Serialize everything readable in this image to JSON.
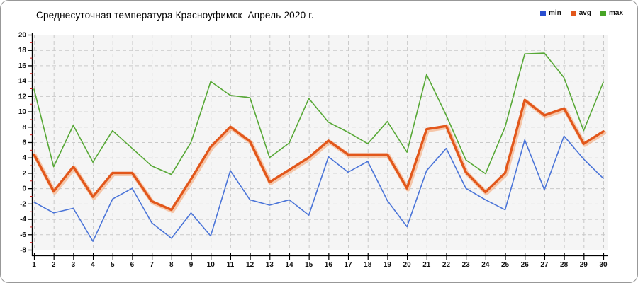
{
  "page": {
    "title": "Среднесуточная температура Красноуфимск  Апрель 2020 г."
  },
  "legend": {
    "items": [
      {
        "label": "min",
        "color": "#2b4fd0"
      },
      {
        "label": "avg",
        "color": "#e2571b"
      },
      {
        "label": "max",
        "color": "#47a426"
      }
    ]
  },
  "chart_data": {
    "type": "line",
    "title": "Среднесуточная температура Красноуфимск  Апрель 2020 г.",
    "xlabel": "",
    "ylabel": "",
    "x": [
      1,
      2,
      3,
      4,
      5,
      6,
      7,
      8,
      9,
      10,
      11,
      12,
      13,
      14,
      15,
      16,
      17,
      18,
      19,
      20,
      21,
      22,
      23,
      24,
      25,
      26,
      27,
      28,
      29,
      30
    ],
    "series": [
      {
        "name": "min",
        "color": "#4a74d8",
        "width": 1.6,
        "values": [
          -1.8,
          -3.2,
          -2.6,
          -6.9,
          -1.4,
          0,
          -4.5,
          -6.5,
          -3.2,
          -6.2,
          2.3,
          -1.5,
          -2.2,
          -1.5,
          -3.5,
          4.1,
          2.1,
          3.5,
          -1.6,
          -5,
          2.3,
          5.2,
          0,
          -1.5,
          -2.8,
          6.3,
          -0.2,
          6.8,
          3.8,
          1.3
        ]
      },
      {
        "name": "avg",
        "color": "#e2571b",
        "halo": "#f4b68f",
        "width": 3.4,
        "values": [
          4.4,
          -0.4,
          2.8,
          -1.1,
          2,
          2,
          -1.7,
          -2.8,
          1.2,
          5.4,
          8,
          6.1,
          0.8,
          2.4,
          4,
          6.2,
          4.4,
          4.4,
          4.4,
          0,
          7.7,
          8.1,
          2.1,
          -0.5,
          2,
          11.5,
          9.5,
          10.4,
          5.8,
          7.4
        ]
      },
      {
        "name": "max",
        "color": "#57a836",
        "width": 1.6,
        "values": [
          12.9,
          2.8,
          8.2,
          3.4,
          7.5,
          5.2,
          2.9,
          1.8,
          6,
          13.9,
          12.1,
          11.8,
          4,
          5.9,
          11.7,
          8.6,
          7.3,
          5.8,
          8.7,
          4.7,
          14.8,
          9.5,
          3.7,
          1.9,
          8,
          17.5,
          17.6,
          14.4,
          7.5,
          13.8
        ]
      }
    ],
    "ylim": [
      -8,
      20
    ],
    "ytick_step": 2,
    "yticks": [
      20,
      18,
      16,
      14,
      12,
      10,
      8,
      6,
      4,
      2,
      0,
      -2,
      -4,
      -6,
      -8
    ],
    "grid": true,
    "grid_style": "dashed",
    "grid_color": "#c9c9c9",
    "plot_bg": "#f5f5f5",
    "axis_color": "#000000",
    "minor_tick_color": "#cc1f1f",
    "legend_position": "top-right"
  }
}
